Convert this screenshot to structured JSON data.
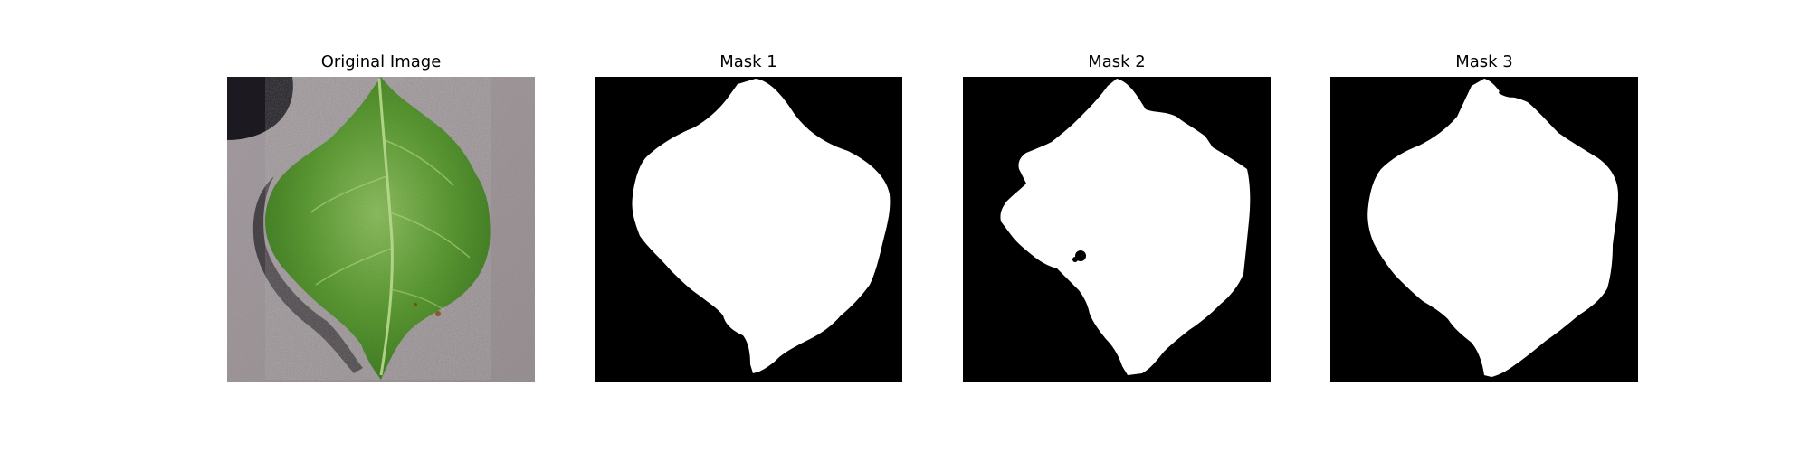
{
  "panels": [
    {
      "title": "Original Image",
      "kind": "photo"
    },
    {
      "title": "Mask 1",
      "kind": "mask"
    },
    {
      "title": "Mask 2",
      "kind": "mask"
    },
    {
      "title": "Mask 3",
      "kind": "mask"
    }
  ],
  "colors": {
    "background": "#ffffff",
    "mask_background": "#000000",
    "mask_foreground": "#ffffff",
    "surface": "#a29a9d",
    "shadow": "#1c1a20",
    "leaf_dark": "#3f7a24",
    "leaf_mid": "#5b9a33",
    "leaf_light": "#8fbf62",
    "vein": "#b9d88e"
  }
}
